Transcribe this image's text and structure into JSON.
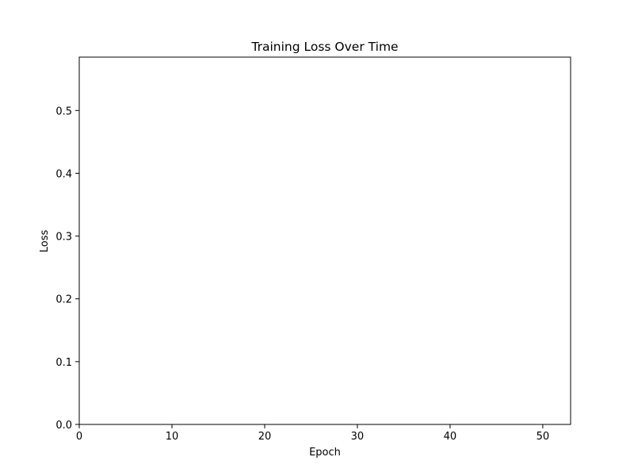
{
  "chart_data": {
    "type": "line",
    "title": "Training Loss Over Time",
    "xlabel": "Epoch",
    "ylabel": "Loss",
    "xlim": [
      0,
      53
    ],
    "ylim": [
      0,
      0.585
    ],
    "xticks": [
      0,
      10,
      20,
      30,
      40,
      50
    ],
    "xtick_labels": [
      "0",
      "10",
      "20",
      "30",
      "40",
      "50"
    ],
    "yticks": [
      0.0,
      0.1,
      0.2,
      0.3,
      0.4,
      0.5
    ],
    "ytick_labels": [
      "0.0",
      "0.1",
      "0.2",
      "0.3",
      "0.4",
      "0.5"
    ],
    "grid": false,
    "series": []
  }
}
